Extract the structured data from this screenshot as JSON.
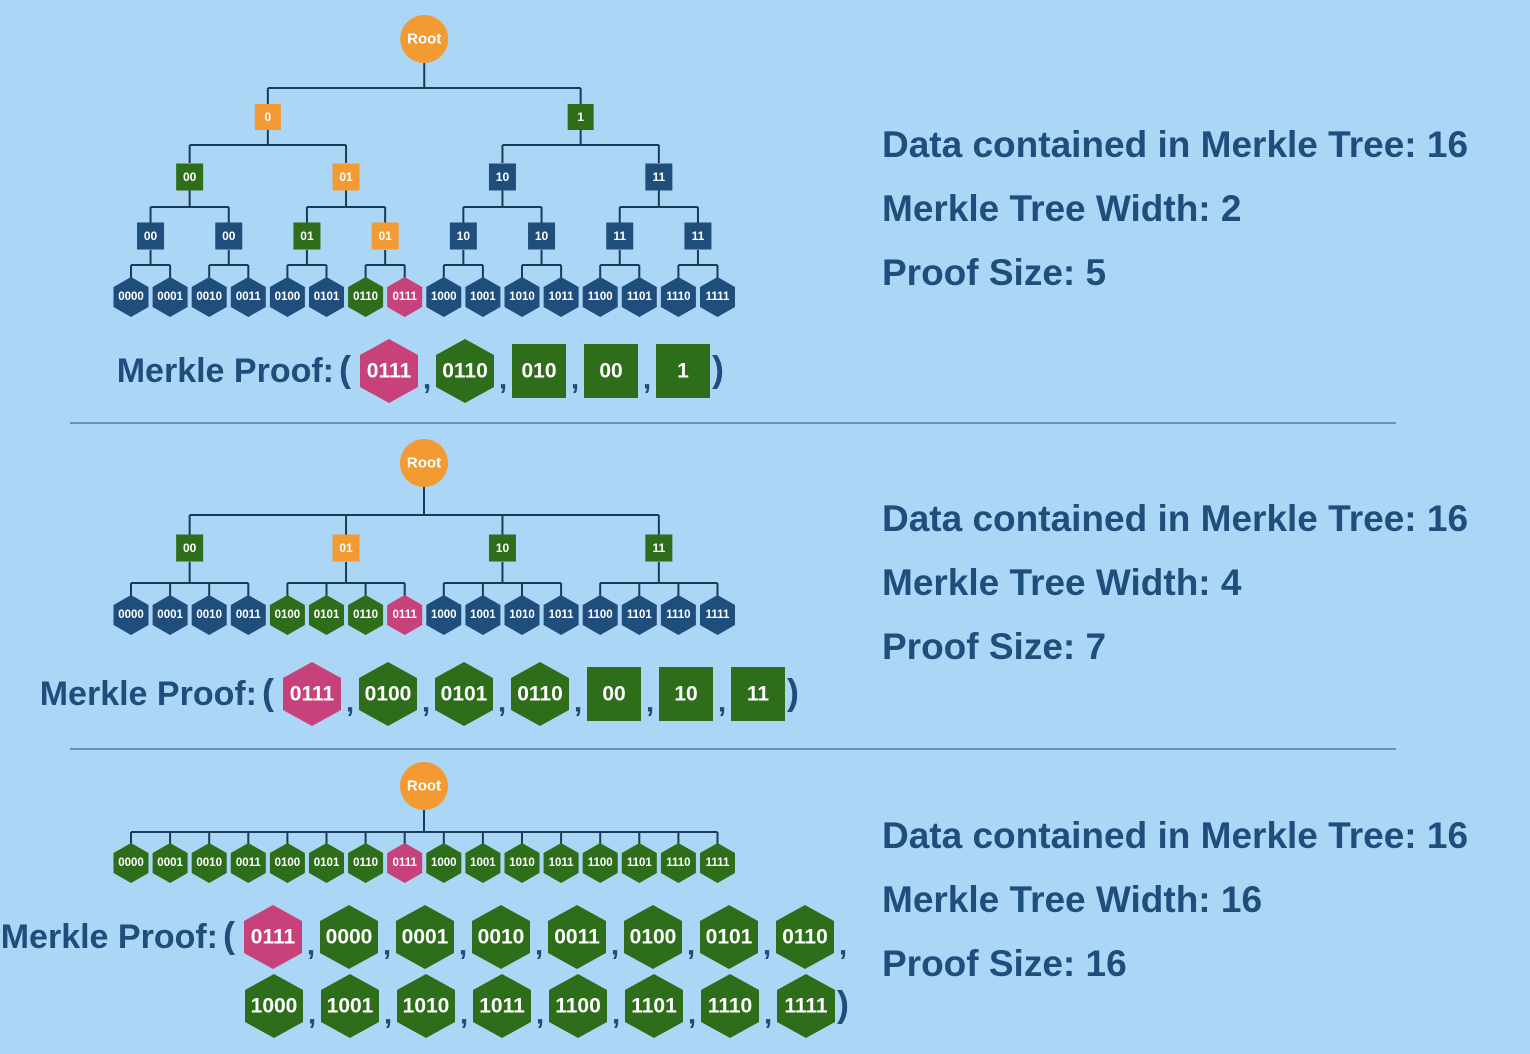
{
  "colors": {
    "background": "#acd6f6",
    "root": "#f39a33",
    "path_node": "#f39a33",
    "proof_node": "#2e6e1a",
    "other_node": "#1f4e7c",
    "target_leaf": "#c7417a",
    "divider": "#4a7fae",
    "text": "#1f4e7c"
  },
  "proof_label": "Merkle Proof:",
  "sections": [
    {
      "root_label": "Root",
      "levels": [
        [
          {
            "label": "0",
            "role": "path"
          },
          {
            "label": "1",
            "role": "proof"
          }
        ],
        [
          {
            "label": "00",
            "role": "proof"
          },
          {
            "label": "01",
            "role": "path"
          },
          {
            "label": "10",
            "role": "other"
          },
          {
            "label": "11",
            "role": "other"
          }
        ],
        [
          {
            "label": "00",
            "role": "other"
          },
          {
            "label": "00",
            "role": "other"
          },
          {
            "label": "01",
            "role": "proof"
          },
          {
            "label": "01",
            "role": "path"
          },
          {
            "label": "10",
            "role": "other"
          },
          {
            "label": "10",
            "role": "other"
          },
          {
            "label": "11",
            "role": "other"
          },
          {
            "label": "11",
            "role": "other"
          }
        ]
      ],
      "leaves": [
        {
          "label": "0000",
          "role": "other"
        },
        {
          "label": "0001",
          "role": "other"
        },
        {
          "label": "0010",
          "role": "other"
        },
        {
          "label": "0011",
          "role": "other"
        },
        {
          "label": "0100",
          "role": "other"
        },
        {
          "label": "0101",
          "role": "other"
        },
        {
          "label": "0110",
          "role": "proof"
        },
        {
          "label": "0111",
          "role": "target"
        },
        {
          "label": "1000",
          "role": "other"
        },
        {
          "label": "1001",
          "role": "other"
        },
        {
          "label": "1010",
          "role": "other"
        },
        {
          "label": "1011",
          "role": "other"
        },
        {
          "label": "1100",
          "role": "other"
        },
        {
          "label": "1101",
          "role": "other"
        },
        {
          "label": "1110",
          "role": "other"
        },
        {
          "label": "1111",
          "role": "other"
        }
      ],
      "proof": [
        {
          "label": "0111",
          "shape": "hex",
          "role": "target"
        },
        {
          "label": "0110",
          "shape": "hex",
          "role": "proof"
        },
        {
          "label": "010",
          "shape": "square",
          "role": "proof"
        },
        {
          "label": "00",
          "shape": "square",
          "role": "proof"
        },
        {
          "label": "1",
          "shape": "square",
          "role": "proof"
        }
      ],
      "stats": [
        "Data contained in Merkle Tree: 16",
        "Merkle Tree Width: 2",
        "Proof Size: 5"
      ]
    },
    {
      "root_label": "Root",
      "levels": [
        [
          {
            "label": "00",
            "role": "proof"
          },
          {
            "label": "01",
            "role": "path"
          },
          {
            "label": "10",
            "role": "proof"
          },
          {
            "label": "11",
            "role": "proof"
          }
        ]
      ],
      "leaves": [
        {
          "label": "0000",
          "role": "other"
        },
        {
          "label": "0001",
          "role": "other"
        },
        {
          "label": "0010",
          "role": "other"
        },
        {
          "label": "0011",
          "role": "other"
        },
        {
          "label": "0100",
          "role": "proof"
        },
        {
          "label": "0101",
          "role": "proof"
        },
        {
          "label": "0110",
          "role": "proof"
        },
        {
          "label": "0111",
          "role": "target"
        },
        {
          "label": "1000",
          "role": "other"
        },
        {
          "label": "1001",
          "role": "other"
        },
        {
          "label": "1010",
          "role": "other"
        },
        {
          "label": "1011",
          "role": "other"
        },
        {
          "label": "1100",
          "role": "other"
        },
        {
          "label": "1101",
          "role": "other"
        },
        {
          "label": "1110",
          "role": "other"
        },
        {
          "label": "1111",
          "role": "other"
        }
      ],
      "proof": [
        {
          "label": "0111",
          "shape": "hex",
          "role": "target"
        },
        {
          "label": "0100",
          "shape": "hex",
          "role": "proof"
        },
        {
          "label": "0101",
          "shape": "hex",
          "role": "proof"
        },
        {
          "label": "0110",
          "shape": "hex",
          "role": "proof"
        },
        {
          "label": "00",
          "shape": "square",
          "role": "proof"
        },
        {
          "label": "10",
          "shape": "square",
          "role": "proof"
        },
        {
          "label": "11",
          "shape": "square",
          "role": "proof"
        }
      ],
      "stats": [
        "Data contained in Merkle Tree: 16",
        "Merkle Tree Width: 4",
        "Proof Size: 7"
      ]
    },
    {
      "root_label": "Root",
      "levels": [],
      "leaves": [
        {
          "label": "0000",
          "role": "proof"
        },
        {
          "label": "0001",
          "role": "proof"
        },
        {
          "label": "0010",
          "role": "proof"
        },
        {
          "label": "0011",
          "role": "proof"
        },
        {
          "label": "0100",
          "role": "proof"
        },
        {
          "label": "0101",
          "role": "proof"
        },
        {
          "label": "0110",
          "role": "proof"
        },
        {
          "label": "0111",
          "role": "target"
        },
        {
          "label": "1000",
          "role": "proof"
        },
        {
          "label": "1001",
          "role": "proof"
        },
        {
          "label": "1010",
          "role": "proof"
        },
        {
          "label": "1011",
          "role": "proof"
        },
        {
          "label": "1100",
          "role": "proof"
        },
        {
          "label": "1101",
          "role": "proof"
        },
        {
          "label": "1110",
          "role": "proof"
        },
        {
          "label": "1111",
          "role": "proof"
        }
      ],
      "proof": [
        {
          "label": "0111",
          "shape": "hex",
          "role": "target"
        },
        {
          "label": "0000",
          "shape": "hex",
          "role": "proof"
        },
        {
          "label": "0001",
          "shape": "hex",
          "role": "proof"
        },
        {
          "label": "0010",
          "shape": "hex",
          "role": "proof"
        },
        {
          "label": "0011",
          "shape": "hex",
          "role": "proof"
        },
        {
          "label": "0100",
          "shape": "hex",
          "role": "proof"
        },
        {
          "label": "0101",
          "shape": "hex",
          "role": "proof"
        },
        {
          "label": "0110",
          "shape": "hex",
          "role": "proof"
        },
        {
          "label": "1000",
          "shape": "hex",
          "role": "proof"
        },
        {
          "label": "1001",
          "shape": "hex",
          "role": "proof"
        },
        {
          "label": "1010",
          "shape": "hex",
          "role": "proof"
        },
        {
          "label": "1011",
          "shape": "hex",
          "role": "proof"
        },
        {
          "label": "1100",
          "shape": "hex",
          "role": "proof"
        },
        {
          "label": "1101",
          "shape": "hex",
          "role": "proof"
        },
        {
          "label": "1110",
          "shape": "hex",
          "role": "proof"
        },
        {
          "label": "1111",
          "shape": "hex",
          "role": "proof"
        }
      ],
      "stats": [
        "Data contained in Merkle Tree: 16",
        "Merkle Tree Width: 16",
        "Proof Size: 16"
      ]
    }
  ]
}
